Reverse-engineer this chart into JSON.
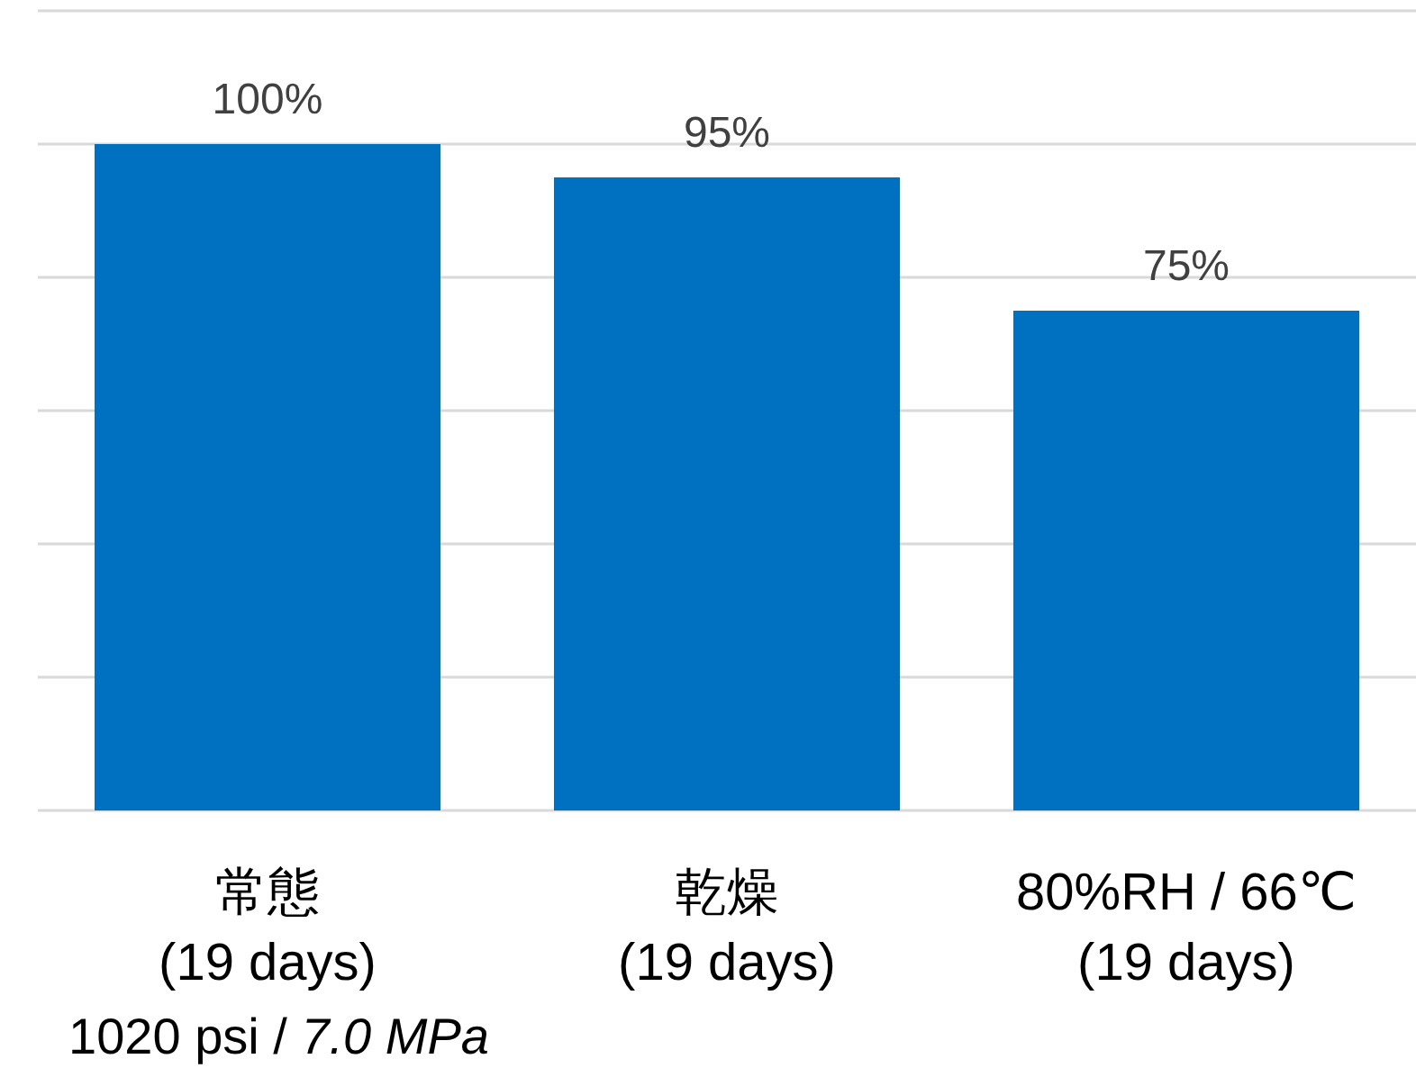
{
  "chart_data": {
    "type": "bar",
    "categories": [
      "常態\n(19 days)",
      "乾燥\n(19 days)",
      "80%RH / 66℃\n(19 days)"
    ],
    "values": [
      100,
      95,
      75
    ],
    "color": "#0070c0",
    "value_labels": [
      "100%",
      "95%",
      "75%"
    ],
    "ylim": [
      0,
      120
    ],
    "yticks": [
      {
        "value": 0,
        "label": null
      },
      {
        "value": 20,
        "label": null
      },
      {
        "value": 40,
        "label": null
      },
      {
        "value": 60,
        "label": null
      },
      {
        "value": 80,
        "label": null
      },
      {
        "value": 100,
        "label": null
      },
      {
        "value": 120,
        "label": null
      }
    ],
    "grid": "y",
    "tick_labels": "x",
    "annotations": [
      "1020 psi / *7.0 MPa*"
    ]
  }
}
